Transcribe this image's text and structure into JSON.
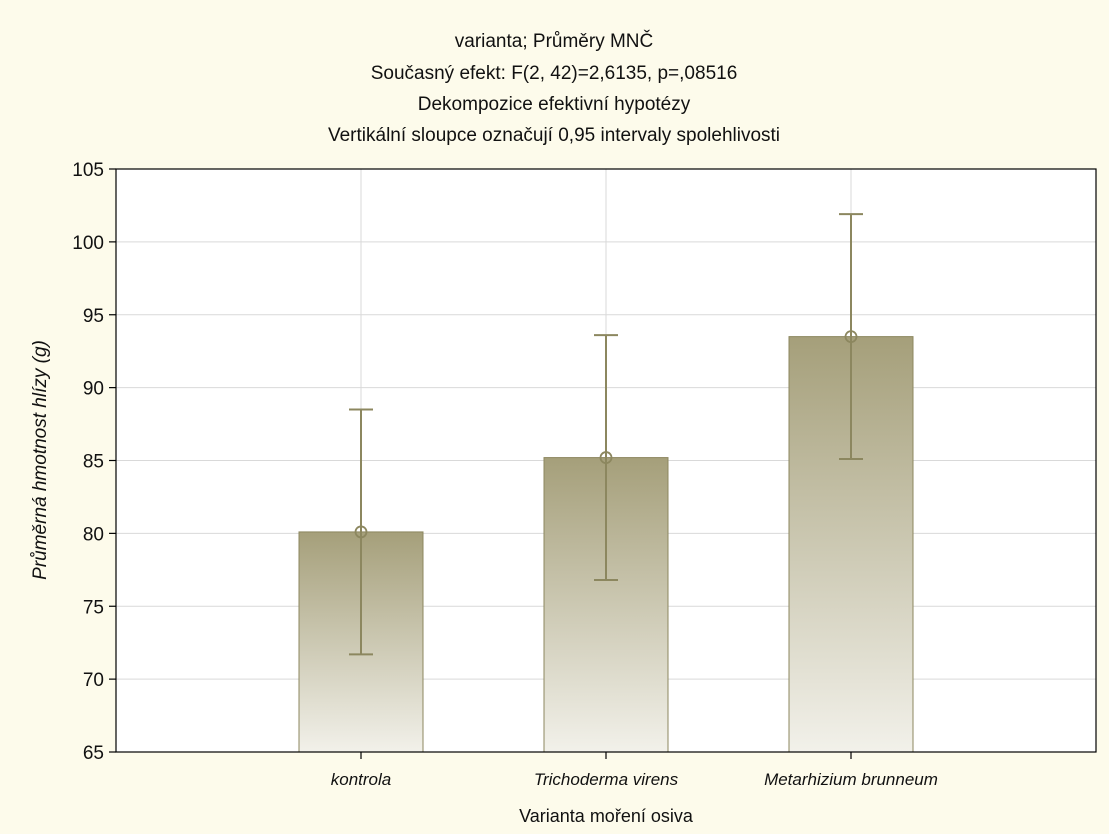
{
  "chart_data": {
    "type": "bar",
    "title_lines": [
      "varianta; Průměry MNČ",
      "Současný efekt: F(2, 42)=2,6135, p=,08516",
      "Dekompozice efektivní hypotézy",
      "Vertikální sloupce označují 0,95 intervaly spolehlivosti"
    ],
    "xlabel": "Varianta moření osiva",
    "ylabel": "Průměrná hmotnost hlízy (g)",
    "ylim": [
      65,
      105
    ],
    "yticks": [
      65,
      70,
      75,
      80,
      85,
      90,
      95,
      100,
      105
    ],
    "categories": [
      "kontrola",
      "Trichoderma virens",
      "Metarhizium brunneum"
    ],
    "values": [
      80.1,
      85.2,
      93.5
    ],
    "ci_lower": [
      71.7,
      76.8,
      85.1
    ],
    "ci_upper": [
      88.5,
      93.6,
      101.9
    ],
    "grid": true,
    "colors": {
      "background": "#fdfbeb",
      "plot_background": "#ffffff",
      "grid": "#d9d9d9",
      "bar_top": "#a59f7a",
      "bar_bottom": "#f2f1ea",
      "bar_stroke": "#8c875f",
      "errorbar": "#8c875f"
    }
  }
}
